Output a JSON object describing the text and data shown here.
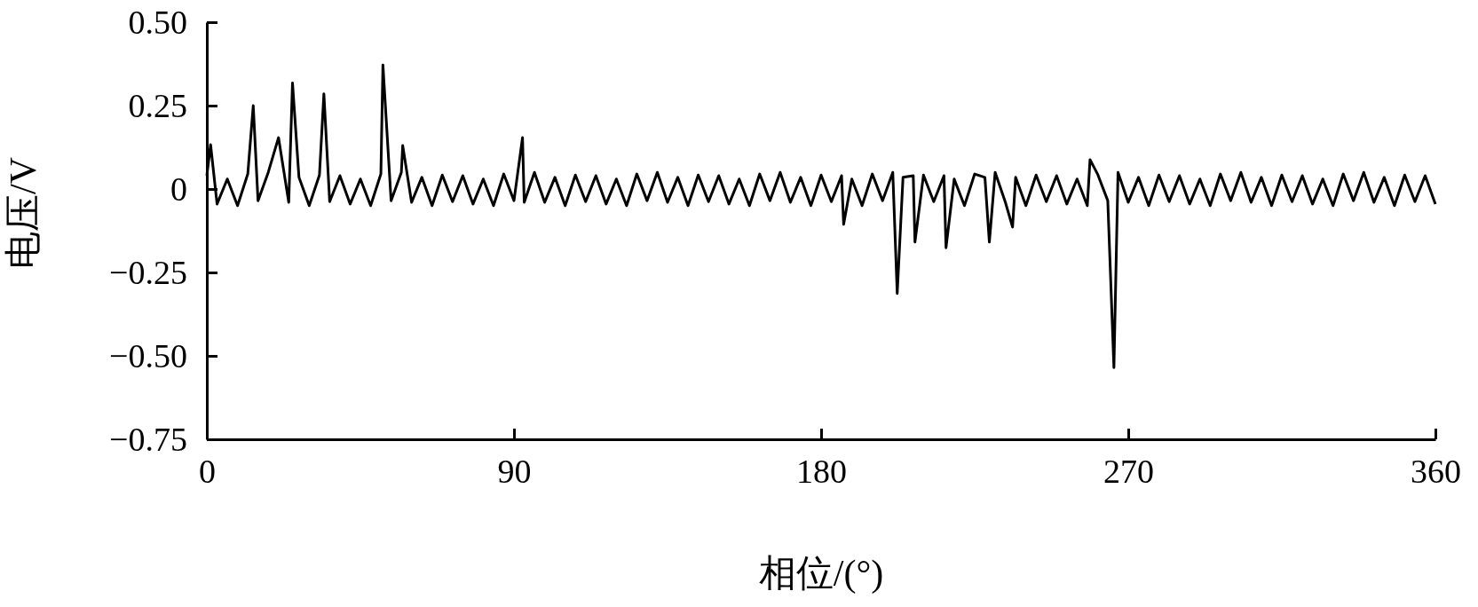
{
  "chart_data": {
    "type": "line",
    "xlabel": "相位/(°)",
    "ylabel": "电压/V",
    "xlim": [
      0,
      360
    ],
    "xticks": [
      0,
      90,
      180,
      270,
      360
    ],
    "ylim": [
      -0.75,
      0.5
    ],
    "yticks": [
      {
        "value": -0.75,
        "label": "−0.75"
      },
      {
        "value": -0.5,
        "label": "−0.50"
      },
      {
        "value": -0.25,
        "label": "−0.25"
      },
      0,
      {
        "value": 0.25,
        "label": "0.25"
      },
      {
        "value": 0.5,
        "label": "0.50"
      }
    ],
    "marker": "none",
    "line_style": "solid",
    "series": [
      {
        "color": "#000000",
        "x": [
          0,
          1.1,
          3,
          6,
          9,
          12,
          13.6,
          15,
          18,
          21,
          24,
          25.1,
          27,
          30,
          33,
          34.3,
          36,
          39,
          42,
          45,
          48,
          51,
          51.6,
          54,
          57,
          57.4,
          60,
          63,
          66,
          69,
          72,
          75,
          78,
          81,
          84,
          87,
          90,
          92.5,
          93,
          96,
          99,
          102,
          105,
          108,
          111,
          114,
          117,
          120,
          123,
          126,
          129,
          132,
          135,
          138,
          141,
          144,
          147,
          150,
          153,
          156,
          159,
          162,
          165,
          168,
          171,
          174,
          177,
          180,
          183,
          186,
          186.6,
          189,
          192,
          195,
          198,
          201,
          202.3,
          204,
          207,
          207.5,
          210,
          213,
          216,
          216.6,
          219,
          222,
          225,
          228,
          229.3,
          231,
          234,
          236.1,
          237,
          240,
          243,
          246,
          249,
          252,
          255,
          258,
          258.8,
          261,
          264,
          265.8,
          267,
          270,
          273,
          276,
          279,
          282,
          285,
          288,
          291,
          294,
          297,
          300,
          303,
          306,
          309,
          312,
          315,
          318,
          321,
          324,
          327,
          330,
          333,
          336,
          339,
          342,
          345,
          348,
          351,
          354,
          357,
          360
        ],
        "values": [
          0.04,
          0.133,
          -0.045,
          0.03,
          -0.05,
          0.045,
          0.25,
          -0.035,
          0.05,
          0.154,
          -0.04,
          0.318,
          0.035,
          -0.05,
          0.042,
          0.285,
          -0.038,
          0.04,
          -0.045,
          0.03,
          -0.05,
          0.045,
          0.372,
          -0.035,
          0.05,
          0.13,
          -0.04,
          0.035,
          -0.05,
          0.042,
          -0.038,
          0.04,
          -0.045,
          0.03,
          -0.05,
          0.045,
          -0.035,
          0.154,
          -0.04,
          0.05,
          -0.04,
          0.035,
          -0.05,
          0.042,
          -0.038,
          0.04,
          -0.045,
          0.03,
          -0.05,
          0.045,
          -0.035,
          0.05,
          -0.04,
          0.035,
          -0.05,
          0.042,
          -0.038,
          0.04,
          -0.045,
          0.03,
          -0.05,
          0.045,
          -0.035,
          0.05,
          -0.04,
          0.035,
          -0.05,
          0.042,
          -0.038,
          0.04,
          -0.106,
          0.03,
          -0.05,
          0.045,
          -0.035,
          0.05,
          -0.313,
          0.035,
          0.04,
          -0.159,
          0.042,
          -0.038,
          0.04,
          -0.176,
          0.03,
          -0.05,
          0.045,
          0.035,
          -0.159,
          0.05,
          -0.04,
          -0.114,
          0.035,
          -0.05,
          0.042,
          -0.038,
          0.04,
          -0.045,
          0.03,
          -0.05,
          0.088,
          0.045,
          -0.035,
          -0.535,
          0.05,
          -0.04,
          0.035,
          -0.05,
          0.042,
          -0.038,
          0.04,
          -0.045,
          0.03,
          -0.05,
          0.045,
          -0.035,
          0.05,
          -0.04,
          0.035,
          -0.05,
          0.042,
          -0.038,
          0.04,
          -0.045,
          0.03,
          -0.05,
          0.045,
          -0.035,
          0.05,
          -0.04,
          0.035,
          -0.05,
          0.042,
          -0.038,
          0.04,
          -0.045
        ]
      }
    ]
  }
}
